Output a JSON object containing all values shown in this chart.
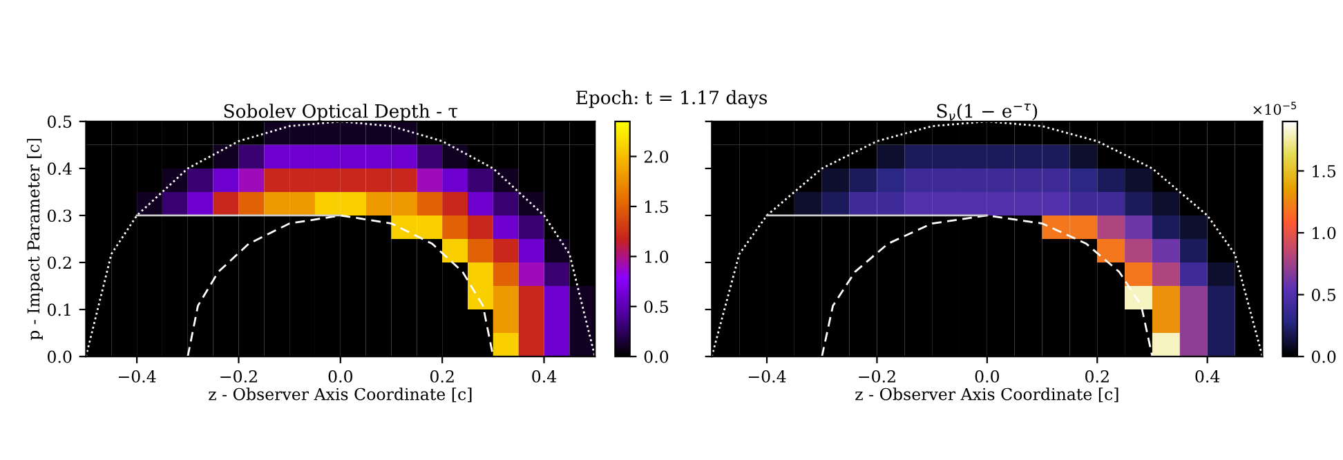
{
  "chart_data": [
    {
      "type": "heatmap",
      "title": "Sobolev Optical Depth - τ",
      "xlabel": "z - Observer Axis Coordinate [c]",
      "ylabel": "p - Impact Parameter [c]",
      "annotations": [
        "Epoch: t = 1.17 days"
      ],
      "cells": [
        [
          0,
          0,
          0,
          0,
          0,
          0,
          0,
          0.1,
          0.1,
          0.1,
          0.1,
          0.1,
          0.1,
          0,
          0,
          0,
          0,
          0,
          0,
          0
        ],
        [
          0,
          0,
          0,
          0,
          0,
          0.1,
          0.3,
          0.6,
          0.6,
          0.6,
          0.6,
          0.6,
          0.6,
          0.3,
          0.1,
          0,
          0,
          0,
          0,
          0
        ],
        [
          0,
          0,
          0,
          0.1,
          0.3,
          0.6,
          0.9,
          1.2,
          1.2,
          1.2,
          1.2,
          1.2,
          1.2,
          0.9,
          0.6,
          0.3,
          0.1,
          0,
          0,
          0
        ],
        [
          0,
          0,
          0.1,
          0.3,
          0.6,
          1.2,
          1.5,
          1.8,
          1.8,
          2.1,
          2.1,
          1.8,
          1.8,
          1.5,
          1.2,
          0.6,
          0.3,
          0.1,
          0,
          0
        ],
        [
          0,
          0,
          0,
          0,
          0,
          0,
          0,
          0,
          0,
          0,
          0,
          0,
          2.1,
          2.1,
          1.5,
          1.2,
          0.6,
          0.3,
          0,
          0
        ],
        [
          0,
          0,
          0,
          0,
          0,
          0,
          0,
          0,
          0,
          0,
          0,
          0,
          0,
          0,
          2.1,
          1.5,
          1.2,
          0.6,
          0.1,
          0
        ],
        [
          0,
          0,
          0,
          0,
          0,
          0,
          0,
          0,
          0,
          0,
          0,
          0,
          0,
          0,
          0,
          2.1,
          1.5,
          0.9,
          0.3,
          0
        ],
        [
          0,
          0,
          0,
          0,
          0,
          0,
          0,
          0,
          0,
          0,
          0,
          0,
          0,
          0,
          0,
          2.1,
          1.8,
          1.2,
          0.6,
          0.1
        ],
        [
          0,
          0,
          0,
          0,
          0,
          0,
          0,
          0,
          0,
          0,
          0,
          0,
          0,
          0,
          0,
          0,
          1.8,
          1.2,
          0.6,
          0.1
        ],
        [
          0,
          0,
          0,
          0,
          0,
          0,
          0,
          0,
          0,
          0,
          0,
          0,
          0,
          0,
          0,
          0,
          2.1,
          1.2,
          0.6,
          0.1
        ]
      ],
      "colors": [
        "#000000",
        "#4b0096",
        "#8c00ff",
        "#c8231e",
        "#e66e00",
        "#f5b400",
        "#ffff00"
      ],
      "clim": [
        0,
        2.35
      ],
      "cticks": [
        {
          "value": 0,
          "label": "0.0"
        },
        {
          "value": 0.5,
          "label": "0.5"
        },
        {
          "value": 1,
          "label": "1.0"
        },
        {
          "value": 1.5,
          "label": "1.5"
        },
        {
          "value": 2,
          "label": "2.0"
        }
      ],
      "xlim": [
        -0.5,
        0.5
      ],
      "ylim": [
        0,
        0.5
      ],
      "xticks": [
        {
          "value": -0.4,
          "label": "−0.4"
        },
        {
          "value": -0.2,
          "label": "−0.2"
        },
        {
          "value": 0,
          "label": "0.0"
        },
        {
          "value": 0.2,
          "label": "0.2"
        },
        {
          "value": 0.4,
          "label": "0.4"
        }
      ],
      "yticks": [
        {
          "value": 0,
          "label": "0.0"
        },
        0.1,
        0.2,
        0.3,
        0.4,
        0.5
      ],
      "series": [
        {
          "type": "line",
          "color": "#ffffff",
          "line_style": "dotted",
          "x": [
            -0.5,
            -0.45,
            -0.4,
            -0.3,
            -0.2,
            -0.1,
            0,
            0.1,
            0.2,
            0.3,
            0.4,
            0.45,
            0.5
          ],
          "values": [
            0,
            0.218,
            0.3,
            0.4,
            0.458,
            0.49,
            0.5,
            0.49,
            0.458,
            0.4,
            0.3,
            0.218,
            0
          ]
        },
        {
          "type": "line",
          "color": "#ffffff",
          "line_style": "dashed",
          "x": [
            -0.3,
            -0.28,
            -0.24,
            -0.18,
            -0.1,
            0,
            0.1,
            0.18,
            0.24,
            0.28,
            0.3
          ],
          "values": [
            0,
            0.108,
            0.18,
            0.24,
            0.283,
            0.3,
            0.283,
            0.24,
            0.18,
            0.108,
            0
          ]
        },
        {
          "type": "line",
          "color": "#cccccc",
          "line_style": "solid",
          "x": [
            -0.4,
            0
          ],
          "values": [
            0.3,
            0.3
          ]
        }
      ]
    },
    {
      "type": "heatmap",
      "title": "S$_{ν}$(1 − e$^{−τ}$)",
      "xlabel": "z - Observer Axis Coordinate [c]",
      "annotations": [
        "×10$^{−5}$"
      ],
      "tick_labels": "x",
      "cells": [
        [
          0,
          0,
          0,
          0,
          0,
          0,
          0,
          0,
          0,
          0,
          0,
          0,
          0,
          0,
          0,
          0,
          0,
          0,
          0,
          0
        ],
        [
          0,
          0,
          0,
          0,
          0,
          0,
          0.1,
          0.2,
          0.2,
          0.2,
          0.2,
          0.2,
          0.2,
          0.1,
          0,
          0,
          0,
          0,
          0,
          0
        ],
        [
          0,
          0,
          0,
          0,
          0.1,
          0.2,
          0.3,
          0.4,
          0.4,
          0.4,
          0.4,
          0.4,
          0.4,
          0.3,
          0.2,
          0.1,
          0,
          0,
          0,
          0
        ],
        [
          0,
          0,
          0,
          0.1,
          0.2,
          0.4,
          0.4,
          0.5,
          0.5,
          0.5,
          0.5,
          0.5,
          0.5,
          0.4,
          0.4,
          0.2,
          0.1,
          0,
          0,
          0
        ],
        [
          0,
          0,
          0,
          0,
          0,
          0,
          0,
          0,
          0,
          0,
          0,
          0,
          1.2,
          1.2,
          0.8,
          0.6,
          0.2,
          0.1,
          0,
          0
        ],
        [
          0,
          0,
          0,
          0,
          0,
          0,
          0,
          0,
          0,
          0,
          0,
          0,
          0,
          0,
          1.2,
          0.8,
          0.6,
          0.2,
          0,
          0
        ],
        [
          0,
          0,
          0,
          0,
          0,
          0,
          0,
          0,
          0,
          0,
          0,
          0,
          0,
          0,
          0,
          1.2,
          0.8,
          0.4,
          0.1,
          0
        ],
        [
          0,
          0,
          0,
          0,
          0,
          0,
          0,
          0,
          0,
          0,
          0,
          0,
          0,
          0,
          0,
          1.8,
          1.3,
          0.7,
          0.2,
          0
        ],
        [
          0,
          0,
          0,
          0,
          0,
          0,
          0,
          0,
          0,
          0,
          0,
          0,
          0,
          0,
          0,
          0,
          1.3,
          0.7,
          0.2,
          0
        ],
        [
          0,
          0,
          0,
          0,
          0,
          0,
          0,
          0,
          0,
          0,
          0,
          0,
          0,
          0,
          0,
          0,
          1.8,
          0.7,
          0.2,
          0
        ]
      ],
      "colors": [
        "#000000",
        "#262680",
        "#5a32b4",
        "#b4467a",
        "#ff5a32",
        "#e6a000",
        "#e6dc50",
        "#ffffff"
      ],
      "clim": [
        0,
        1.9
      ],
      "cticks": [
        {
          "value": 0,
          "label": "0.0"
        },
        {
          "value": 0.5,
          "label": "0.5"
        },
        {
          "value": 1,
          "label": "1.0"
        },
        {
          "value": 1.5,
          "label": "1.5"
        }
      ],
      "xlim": [
        -0.5,
        0.5
      ],
      "ylim": [
        0,
        0.5
      ],
      "xticks": [
        {
          "value": -0.4,
          "label": "−0.4"
        },
        {
          "value": -0.2,
          "label": "−0.2"
        },
        {
          "value": 0,
          "label": "0.0"
        },
        {
          "value": 0.2,
          "label": "0.2"
        },
        {
          "value": 0.4,
          "label": "0.4"
        }
      ],
      "yticks": [
        0,
        0.1,
        0.2,
        0.3,
        0.4,
        0.5
      ],
      "series": [
        {
          "type": "line",
          "color": "#ffffff",
          "line_style": "dotted",
          "x": [
            -0.5,
            -0.45,
            -0.4,
            -0.3,
            -0.2,
            -0.1,
            0,
            0.1,
            0.2,
            0.3,
            0.4,
            0.45,
            0.5
          ],
          "values": [
            0,
            0.218,
            0.3,
            0.4,
            0.458,
            0.49,
            0.5,
            0.49,
            0.458,
            0.4,
            0.3,
            0.218,
            0
          ]
        },
        {
          "type": "line",
          "color": "#ffffff",
          "line_style": "dashed",
          "x": [
            -0.3,
            -0.28,
            -0.24,
            -0.18,
            -0.1,
            0,
            0.1,
            0.18,
            0.24,
            0.28,
            0.3
          ],
          "values": [
            0,
            0.108,
            0.18,
            0.24,
            0.283,
            0.3,
            0.283,
            0.24,
            0.18,
            0.108,
            0
          ]
        },
        {
          "type": "line",
          "color": "#cccccc",
          "line_style": "solid",
          "x": [
            -0.4,
            0
          ],
          "values": [
            0.3,
            0.3
          ]
        }
      ]
    }
  ]
}
